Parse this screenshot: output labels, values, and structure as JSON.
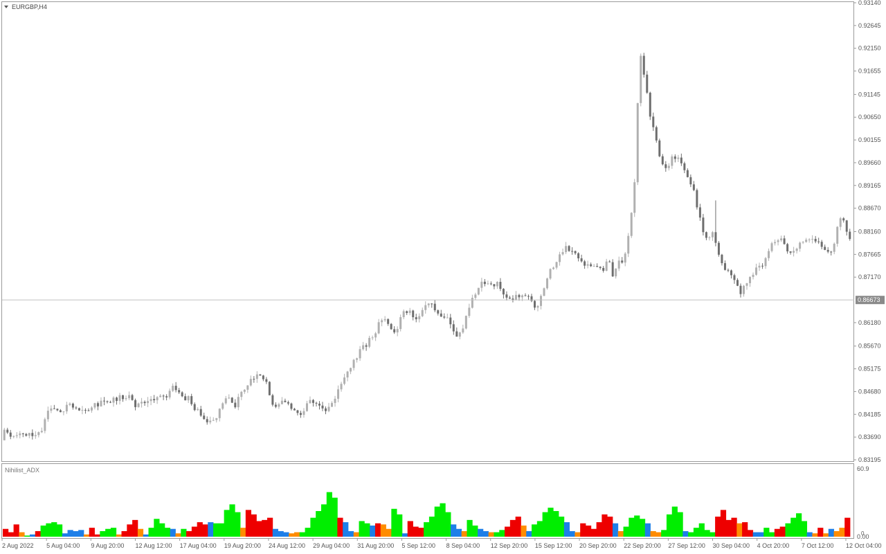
{
  "window": {
    "title": "EURGBP,H4"
  },
  "price_axis": {
    "ticks": [
      "0.93140",
      "0.92645",
      "0.92150",
      "0.91655",
      "0.91145",
      "0.90650",
      "0.90155",
      "0.89660",
      "0.89165",
      "0.88670",
      "0.88160",
      "0.87665",
      "0.87170",
      "0.86180",
      "0.85670",
      "0.85175",
      "0.84680",
      "0.84185",
      "0.83690",
      "0.83195"
    ],
    "current_price": "0.86673",
    "range": [
      0.83195,
      0.9314
    ]
  },
  "time_axis": {
    "labels": [
      "2 Aug 2022",
      "5 Aug 04:00",
      "9 Aug 20:00",
      "12 Aug 12:00",
      "17 Aug 04:00",
      "19 Aug 20:00",
      "24 Aug 12:00",
      "29 Aug 04:00",
      "31 Aug 20:00",
      "5 Sep 12:00",
      "8 Sep 04:00",
      "12 Sep 20:00",
      "15 Sep 12:00",
      "20 Sep 20:00",
      "22 Sep 20:00",
      "27 Sep 12:00",
      "30 Sep 04:00",
      "4 Oct 20:00",
      "7 Oct 12:00",
      "12 Oct 04:00"
    ]
  },
  "indicator": {
    "name": "Nihilist_ADX",
    "max_label": "60.9",
    "zero_label": "0.00",
    "mid_label": "0",
    "range": [
      0,
      60.9
    ]
  },
  "colors": {
    "up_candle": "#b0b0b0",
    "down_candle": "#6e6e6e",
    "grid_line": "#c8c8c8",
    "price_tag_bg": "#8a8a8a",
    "green": "#00ee00",
    "red": "#ee0000",
    "blue": "#1e7fe8",
    "orange": "#ff8c00"
  },
  "chart_data": [
    {
      "type": "candlestick",
      "title": "EURGBP,H4",
      "ylim": [
        0.83195,
        0.9314
      ],
      "y_ticks": [
        0.9314,
        0.92645,
        0.9215,
        0.91655,
        0.91145,
        0.9065,
        0.90155,
        0.8966,
        0.89165,
        0.8867,
        0.8816,
        0.87665,
        0.8717,
        0.8618,
        0.8567,
        0.85175,
        0.8468,
        0.84185,
        0.8369,
        0.83195
      ],
      "current_price": 0.86673,
      "x_labels": [
        "2 Aug 2022",
        "5 Aug 04:00",
        "9 Aug 20:00",
        "12 Aug 12:00",
        "17 Aug 04:00",
        "19 Aug 20:00",
        "24 Aug 12:00",
        "29 Aug 04:00",
        "31 Aug 20:00",
        "5 Sep 12:00",
        "8 Sep 04:00",
        "12 Sep 20:00",
        "15 Sep 12:00",
        "20 Sep 20:00",
        "22 Sep 20:00",
        "27 Sep 12:00",
        "30 Sep 04:00",
        "4 Oct 20:00",
        "7 Oct 12:00",
        "12 Oct 04:00"
      ],
      "close_path": [
        0.8385,
        0.8368,
        0.837,
        0.8372,
        0.8372,
        0.8375,
        0.8375,
        0.838,
        0.8422,
        0.8432,
        0.8432,
        0.8428,
        0.8438,
        0.8438,
        0.8432,
        0.843,
        0.8424,
        0.844,
        0.8442,
        0.8444,
        0.8446,
        0.8452,
        0.8456,
        0.8458,
        0.8454,
        0.8434,
        0.844,
        0.8444,
        0.8452,
        0.8456,
        0.8458,
        0.845,
        0.8482,
        0.8466,
        0.8452,
        0.8458,
        0.8436,
        0.8424,
        0.8414,
        0.8402,
        0.8404,
        0.843,
        0.8454,
        0.8448,
        0.8438,
        0.8465,
        0.8472,
        0.8496,
        0.8505,
        0.8497,
        0.8485,
        0.8445,
        0.8438,
        0.8444,
        0.8437,
        0.8425,
        0.8418,
        0.8428,
        0.8454,
        0.8446,
        0.8438,
        0.8428,
        0.8442,
        0.8456,
        0.8482,
        0.8498,
        0.8524,
        0.8538,
        0.8562,
        0.8572,
        0.8588,
        0.8606,
        0.8631,
        0.8618,
        0.8597,
        0.8612,
        0.8642,
        0.8643,
        0.8629,
        0.8634,
        0.8654,
        0.8665,
        0.8648,
        0.8637,
        0.8629,
        0.8614,
        0.8593,
        0.8592,
        0.8634,
        0.8669,
        0.8684,
        0.8703,
        0.8708,
        0.8694,
        0.8711,
        0.8675,
        0.8666,
        0.8674,
        0.8674,
        0.8672,
        0.8682,
        0.8646,
        0.8667,
        0.8707,
        0.8735,
        0.8748,
        0.8775,
        0.878,
        0.8778,
        0.8758,
        0.8745,
        0.8748,
        0.8737,
        0.8745,
        0.8732,
        0.8754,
        0.8718,
        0.8748,
        0.8752,
        0.8815,
        0.8925,
        0.9205,
        0.9148,
        0.9065,
        0.9018,
        0.8968,
        0.8948,
        0.8975,
        0.8982,
        0.8962,
        0.8934,
        0.8918,
        0.8862,
        0.8818,
        0.8792,
        0.8818,
        0.8772,
        0.8734,
        0.8728,
        0.8712,
        0.8683,
        0.8697,
        0.8718,
        0.8734,
        0.8742,
        0.8755,
        0.8788,
        0.8802,
        0.8796,
        0.8778,
        0.8772,
        0.8786,
        0.8798,
        0.8794,
        0.8802,
        0.8792,
        0.8778,
        0.8772,
        0.8782,
        0.8856,
        0.8832,
        0.8798
      ]
    },
    {
      "type": "bar",
      "title": "Nihilist_ADX",
      "ylim": [
        0,
        60.9
      ],
      "color_categories": [
        "green",
        "red",
        "blue",
        "orange"
      ],
      "bars": [
        {
          "v": 7,
          "c": "red"
        },
        {
          "v": 4,
          "c": "red"
        },
        {
          "v": 11,
          "c": "red"
        },
        {
          "v": 4,
          "c": "orange"
        },
        {
          "v": 1,
          "c": "green"
        },
        {
          "v": 2,
          "c": "blue"
        },
        {
          "v": 5,
          "c": "red"
        },
        {
          "v": 10,
          "c": "green"
        },
        {
          "v": 12,
          "c": "green"
        },
        {
          "v": 13,
          "c": "green"
        },
        {
          "v": 11,
          "c": "green"
        },
        {
          "v": 3,
          "c": "blue"
        },
        {
          "v": 6,
          "c": "blue"
        },
        {
          "v": 5,
          "c": "blue"
        },
        {
          "v": 6,
          "c": "blue"
        },
        {
          "v": 2,
          "c": "orange"
        },
        {
          "v": 8,
          "c": "red"
        },
        {
          "v": 2,
          "c": "red"
        },
        {
          "v": 5,
          "c": "green"
        },
        {
          "v": 7,
          "c": "green"
        },
        {
          "v": 8,
          "c": "green"
        },
        {
          "v": 2,
          "c": "orange"
        },
        {
          "v": 5,
          "c": "red"
        },
        {
          "v": 11,
          "c": "red"
        },
        {
          "v": 15,
          "c": "red"
        },
        {
          "v": 7,
          "c": "orange"
        },
        {
          "v": 2,
          "c": "blue"
        },
        {
          "v": 8,
          "c": "green"
        },
        {
          "v": 16,
          "c": "green"
        },
        {
          "v": 12,
          "c": "green"
        },
        {
          "v": 8,
          "c": "green"
        },
        {
          "v": 7,
          "c": "blue"
        },
        {
          "v": 3,
          "c": "orange"
        },
        {
          "v": 7,
          "c": "green"
        },
        {
          "v": 5,
          "c": "red"
        },
        {
          "v": 9,
          "c": "red"
        },
        {
          "v": 13,
          "c": "red"
        },
        {
          "v": 11,
          "c": "red"
        },
        {
          "v": 13,
          "c": "blue"
        },
        {
          "v": 12,
          "c": "green"
        },
        {
          "v": 12,
          "c": "green"
        },
        {
          "v": 24,
          "c": "green"
        },
        {
          "v": 29,
          "c": "green"
        },
        {
          "v": 22,
          "c": "green"
        },
        {
          "v": 8,
          "c": "orange"
        },
        {
          "v": 24,
          "c": "red"
        },
        {
          "v": 20,
          "c": "red"
        },
        {
          "v": 14,
          "c": "red"
        },
        {
          "v": 15,
          "c": "red"
        },
        {
          "v": 17,
          "c": "red"
        },
        {
          "v": 7,
          "c": "blue"
        },
        {
          "v": 5,
          "c": "blue"
        },
        {
          "v": 4,
          "c": "blue"
        },
        {
          "v": 3,
          "c": "orange"
        },
        {
          "v": 4,
          "c": "orange"
        },
        {
          "v": 4,
          "c": "green"
        },
        {
          "v": 8,
          "c": "green"
        },
        {
          "v": 17,
          "c": "green"
        },
        {
          "v": 23,
          "c": "green"
        },
        {
          "v": 29,
          "c": "green"
        },
        {
          "v": 40,
          "c": "green"
        },
        {
          "v": 35,
          "c": "green"
        },
        {
          "v": 17,
          "c": "red"
        },
        {
          "v": 13,
          "c": "blue"
        },
        {
          "v": 5,
          "c": "blue"
        },
        {
          "v": 4,
          "c": "orange"
        },
        {
          "v": 14,
          "c": "green"
        },
        {
          "v": 12,
          "c": "green"
        },
        {
          "v": 10,
          "c": "blue"
        },
        {
          "v": 12,
          "c": "red"
        },
        {
          "v": 11,
          "c": "orange"
        },
        {
          "v": 7,
          "c": "orange"
        },
        {
          "v": 25,
          "c": "green"
        },
        {
          "v": 20,
          "c": "green"
        },
        {
          "v": 3,
          "c": "blue"
        },
        {
          "v": 14,
          "c": "red"
        },
        {
          "v": 9,
          "c": "red"
        },
        {
          "v": 8,
          "c": "red"
        },
        {
          "v": 13,
          "c": "green"
        },
        {
          "v": 18,
          "c": "green"
        },
        {
          "v": 27,
          "c": "green"
        },
        {
          "v": 30,
          "c": "green"
        },
        {
          "v": 22,
          "c": "green"
        },
        {
          "v": 11,
          "c": "blue"
        },
        {
          "v": 7,
          "c": "blue"
        },
        {
          "v": 5,
          "c": "orange"
        },
        {
          "v": 15,
          "c": "green"
        },
        {
          "v": 10,
          "c": "green"
        },
        {
          "v": 7,
          "c": "blue"
        },
        {
          "v": 5,
          "c": "blue"
        },
        {
          "v": 4,
          "c": "orange"
        },
        {
          "v": 4,
          "c": "green"
        },
        {
          "v": 6,
          "c": "green"
        },
        {
          "v": 9,
          "c": "red"
        },
        {
          "v": 15,
          "c": "red"
        },
        {
          "v": 18,
          "c": "red"
        },
        {
          "v": 10,
          "c": "orange"
        },
        {
          "v": 5,
          "c": "blue"
        },
        {
          "v": 11,
          "c": "green"
        },
        {
          "v": 14,
          "c": "green"
        },
        {
          "v": 22,
          "c": "green"
        },
        {
          "v": 26,
          "c": "green"
        },
        {
          "v": 23,
          "c": "green"
        },
        {
          "v": 18,
          "c": "green"
        },
        {
          "v": 13,
          "c": "blue"
        },
        {
          "v": 5,
          "c": "blue"
        },
        {
          "v": 4,
          "c": "orange"
        },
        {
          "v": 12,
          "c": "red"
        },
        {
          "v": 10,
          "c": "red"
        },
        {
          "v": 7,
          "c": "red"
        },
        {
          "v": 13,
          "c": "red"
        },
        {
          "v": 20,
          "c": "red"
        },
        {
          "v": 18,
          "c": "red"
        },
        {
          "v": 12,
          "c": "blue"
        },
        {
          "v": 5,
          "c": "orange"
        },
        {
          "v": 9,
          "c": "green"
        },
        {
          "v": 17,
          "c": "green"
        },
        {
          "v": 19,
          "c": "green"
        },
        {
          "v": 16,
          "c": "green"
        },
        {
          "v": 12,
          "c": "blue"
        },
        {
          "v": 5,
          "c": "orange"
        },
        {
          "v": 4,
          "c": "orange"
        },
        {
          "v": 6,
          "c": "green"
        },
        {
          "v": 20,
          "c": "green"
        },
        {
          "v": 27,
          "c": "green"
        },
        {
          "v": 22,
          "c": "green"
        },
        {
          "v": 5,
          "c": "blue"
        },
        {
          "v": 4,
          "c": "green"
        },
        {
          "v": 8,
          "c": "green"
        },
        {
          "v": 12,
          "c": "green"
        },
        {
          "v": 6,
          "c": "green"
        },
        {
          "v": 4,
          "c": "green"
        },
        {
          "v": 18,
          "c": "red"
        },
        {
          "v": 24,
          "c": "red"
        },
        {
          "v": 15,
          "c": "red"
        },
        {
          "v": 17,
          "c": "red"
        },
        {
          "v": 12,
          "c": "orange"
        },
        {
          "v": 13,
          "c": "red"
        },
        {
          "v": 6,
          "c": "red"
        },
        {
          "v": 4,
          "c": "blue"
        },
        {
          "v": 4,
          "c": "blue"
        },
        {
          "v": 8,
          "c": "green"
        },
        {
          "v": 4,
          "c": "green"
        },
        {
          "v": 7,
          "c": "red"
        },
        {
          "v": 9,
          "c": "red"
        },
        {
          "v": 12,
          "c": "green"
        },
        {
          "v": 17,
          "c": "green"
        },
        {
          "v": 21,
          "c": "green"
        },
        {
          "v": 14,
          "c": "green"
        },
        {
          "v": 4,
          "c": "blue"
        },
        {
          "v": 3,
          "c": "orange"
        },
        {
          "v": 8,
          "c": "red"
        },
        {
          "v": 3,
          "c": "orange"
        },
        {
          "v": 7,
          "c": "blue"
        },
        {
          "v": 5,
          "c": "orange"
        },
        {
          "v": 8,
          "c": "orange"
        },
        {
          "v": 17,
          "c": "red"
        }
      ]
    }
  ]
}
